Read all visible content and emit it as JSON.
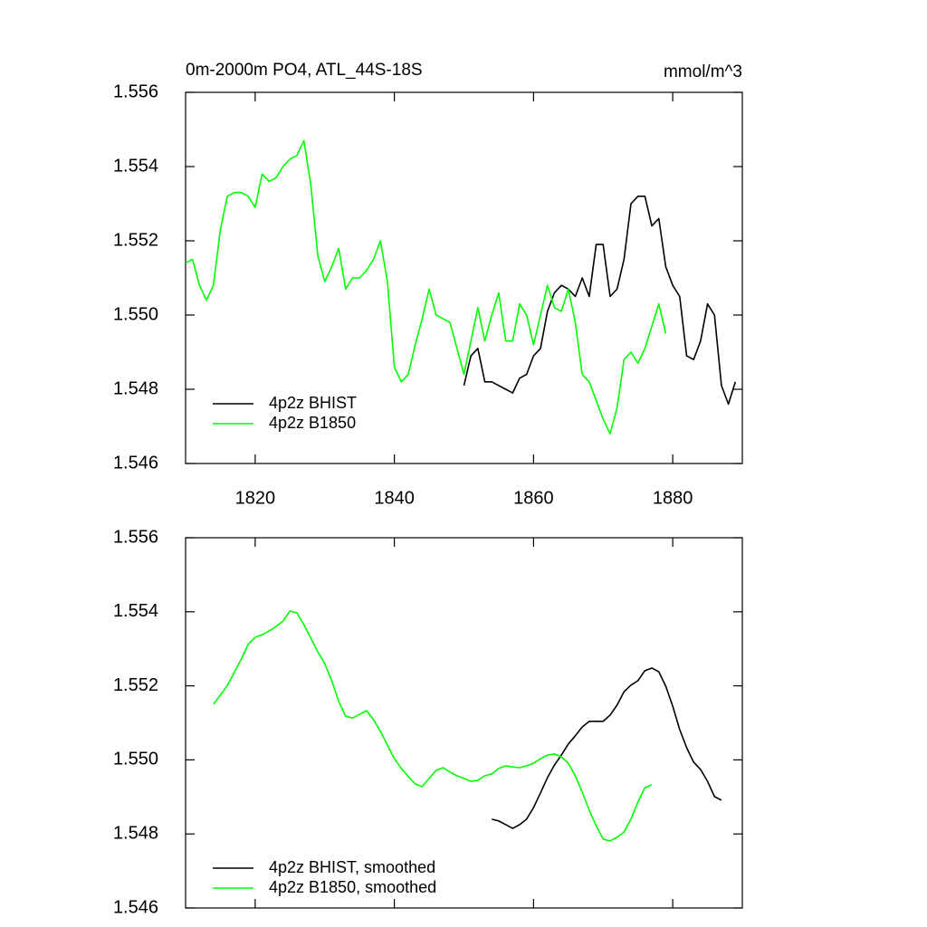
{
  "chart_data": [
    {
      "type": "line",
      "title": "0m-2000m PO4, ATL_44S-18S",
      "units": "mmol/m^3",
      "xlim": [
        1810,
        1890
      ],
      "xticks": [
        1820,
        1840,
        1860,
        1880
      ],
      "xtick_labels": true,
      "ylim": [
        1.546,
        1.556
      ],
      "yticks": [
        1.546,
        1.548,
        {
          "value": 1.55,
          "label": "1.550"
        },
        1.552,
        1.554,
        1.556
      ],
      "legend": "lower left",
      "series": [
        {
          "name": "4p2z BHIST",
          "color": "#000000",
          "x": [
            1850,
            1851,
            1852,
            1853,
            1854,
            1855,
            1856,
            1857,
            1858,
            1859,
            1860,
            1861,
            1862,
            1863,
            1864,
            1865,
            1866,
            1867,
            1868,
            1869,
            1870,
            1871,
            1872,
            1873,
            1874,
            1875,
            1876,
            1877,
            1878,
            1879,
            1880,
            1881,
            1882,
            1883,
            1884,
            1885,
            1886,
            1887,
            1888,
            1889
          ],
          "values": [
            1.5481,
            1.5489,
            1.5491,
            1.5482,
            1.5482,
            1.5481,
            1.548,
            1.5479,
            1.5483,
            1.5484,
            1.5489,
            1.5491,
            1.5501,
            1.5506,
            1.5508,
            1.5507,
            1.5505,
            1.551,
            1.5505,
            1.5519,
            1.5519,
            1.5505,
            1.5507,
            1.5515,
            1.553,
            1.5532,
            1.5532,
            1.5524,
            1.5526,
            1.5513,
            1.5508,
            1.5505,
            1.5489,
            1.5488,
            1.5493,
            1.5503,
            1.55,
            1.5481,
            1.5476,
            1.5482
          ]
        },
        {
          "name": "4p2z B1850",
          "color": "#00ff00",
          "x": [
            1810,
            1811,
            1812,
            1813,
            1814,
            1815,
            1816,
            1817,
            1818,
            1819,
            1820,
            1821,
            1822,
            1823,
            1824,
            1825,
            1826,
            1827,
            1828,
            1829,
            1830,
            1831,
            1832,
            1833,
            1834,
            1835,
            1836,
            1837,
            1838,
            1839,
            1840,
            1841,
            1842,
            1843,
            1844,
            1845,
            1846,
            1847,
            1848,
            1849,
            1850,
            1851,
            1852,
            1853,
            1854,
            1855,
            1856,
            1857,
            1858,
            1859,
            1860,
            1861,
            1862,
            1863,
            1864,
            1865,
            1866,
            1867,
            1868,
            1869,
            1870,
            1871,
            1872,
            1873,
            1874,
            1875,
            1876,
            1877,
            1878,
            1879
          ],
          "values": [
            1.5514,
            1.5515,
            1.5508,
            1.5504,
            1.5508,
            1.5523,
            1.5532,
            1.5533,
            1.5533,
            1.5532,
            1.5529,
            1.5538,
            1.5536,
            1.5537,
            1.554,
            1.5542,
            1.5543,
            1.5547,
            1.5535,
            1.5516,
            1.5509,
            1.5513,
            1.5518,
            1.5507,
            1.551,
            1.551,
            1.5512,
            1.5515,
            1.552,
            1.5509,
            1.5486,
            1.5482,
            1.5484,
            1.5492,
            1.5499,
            1.5507,
            1.55,
            1.5499,
            1.5498,
            1.5491,
            1.5484,
            1.5493,
            1.5502,
            1.5493,
            1.55,
            1.5506,
            1.5493,
            1.5493,
            1.5503,
            1.55,
            1.5492,
            1.55,
            1.5508,
            1.5502,
            1.5501,
            1.5507,
            1.5498,
            1.5484,
            1.5482,
            1.5477,
            1.5472,
            1.5468,
            1.5475,
            1.5488,
            1.549,
            1.5487,
            1.5491,
            1.5497,
            1.5503,
            1.5495
          ]
        }
      ]
    },
    {
      "type": "line",
      "xlim": [
        1810,
        1890
      ],
      "xticks": [
        1820,
        1840,
        1860,
        1880
      ],
      "xtick_labels": false,
      "ylim": [
        1.546,
        1.556
      ],
      "yticks": [
        1.546,
        1.548,
        {
          "value": 1.55,
          "label": "1.550"
        },
        1.552,
        1.554,
        1.556
      ],
      "legend": "lower left",
      "series": [
        {
          "name": "4p2z BHIST, smoothed",
          "color": "#000000",
          "x": [
            1854,
            1855,
            1856,
            1857,
            1858,
            1859,
            1860,
            1861,
            1862,
            1863,
            1864,
            1865,
            1866,
            1867,
            1868,
            1869,
            1870,
            1871,
            1872,
            1873,
            1874,
            1875,
            1876,
            1877,
            1878,
            1879,
            1880,
            1881,
            1882,
            1883,
            1884,
            1885,
            1886,
            1887
          ],
          "values": [
            1.5484,
            1.54835,
            1.54825,
            1.54815,
            1.54825,
            1.5484,
            1.54871,
            1.54911,
            1.54952,
            1.54986,
            1.55013,
            1.55043,
            1.55065,
            1.55089,
            1.55104,
            1.55104,
            1.55104,
            1.55121,
            1.55148,
            1.55184,
            1.55202,
            1.55214,
            1.55241,
            1.55248,
            1.55238,
            1.55199,
            1.55145,
            1.55082,
            1.55033,
            1.54994,
            1.54974,
            1.54942,
            1.54901,
            1.54891
          ]
        },
        {
          "name": "4p2z B1850, smoothed",
          "color": "#00ff00",
          "x": [
            1814,
            1815,
            1816,
            1817,
            1818,
            1819,
            1820,
            1821,
            1822,
            1823,
            1824,
            1825,
            1826,
            1827,
            1828,
            1829,
            1830,
            1831,
            1832,
            1833,
            1834,
            1835,
            1836,
            1837,
            1838,
            1839,
            1840,
            1841,
            1842,
            1843,
            1844,
            1845,
            1846,
            1847,
            1848,
            1849,
            1850,
            1851,
            1852,
            1853,
            1854,
            1855,
            1856,
            1857,
            1858,
            1859,
            1860,
            1861,
            1862,
            1863,
            1864,
            1865,
            1866,
            1867,
            1868,
            1869,
            1870,
            1871,
            1872,
            1873,
            1874,
            1875,
            1876,
            1877
          ],
          "values": [
            1.5515,
            1.55175,
            1.55201,
            1.55236,
            1.55272,
            1.55312,
            1.55331,
            1.55338,
            1.55348,
            1.5536,
            1.55375,
            1.55402,
            1.55397,
            1.55365,
            1.55329,
            1.55292,
            1.5526,
            1.55214,
            1.55158,
            1.55118,
            1.55113,
            1.55123,
            1.55133,
            1.55109,
            1.55077,
            1.5504,
            1.55003,
            1.54977,
            1.54955,
            1.54935,
            1.54928,
            1.5495,
            1.54972,
            1.54979,
            1.54967,
            1.54957,
            1.5495,
            1.54942,
            1.54945,
            1.54957,
            1.54962,
            1.54977,
            1.54984,
            1.54981,
            1.54979,
            1.54984,
            1.54991,
            1.55003,
            1.55013,
            1.55016,
            1.55008,
            1.54991,
            1.54957,
            1.54913,
            1.54864,
            1.54822,
            1.54786,
            1.54781,
            1.54791,
            1.54805,
            1.5484,
            1.54886,
            1.54925,
            1.54933
          ]
        }
      ]
    }
  ]
}
